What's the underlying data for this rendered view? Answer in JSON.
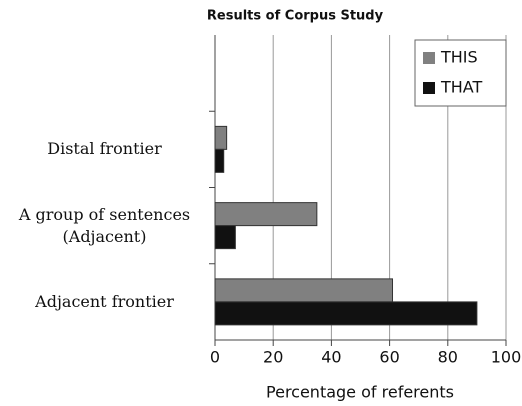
{
  "chart_data": {
    "type": "hbar",
    "title": "Results of Corpus Study",
    "categories": [
      "Distal frontier",
      "A group of sentences\n(Adjacent)",
      "Adjacent frontier"
    ],
    "series": [
      {
        "name": "THIS",
        "color": "#808080",
        "values": [
          4,
          35,
          61
        ]
      },
      {
        "name": "THAT",
        "color": "#111111",
        "values": [
          3,
          7,
          90
        ]
      }
    ],
    "xlabel": "Percentage of referents",
    "xlim": [
      0,
      100
    ],
    "xticks": [
      0,
      20,
      40,
      60,
      80,
      100
    ],
    "grid": true,
    "legend": "upper right"
  }
}
